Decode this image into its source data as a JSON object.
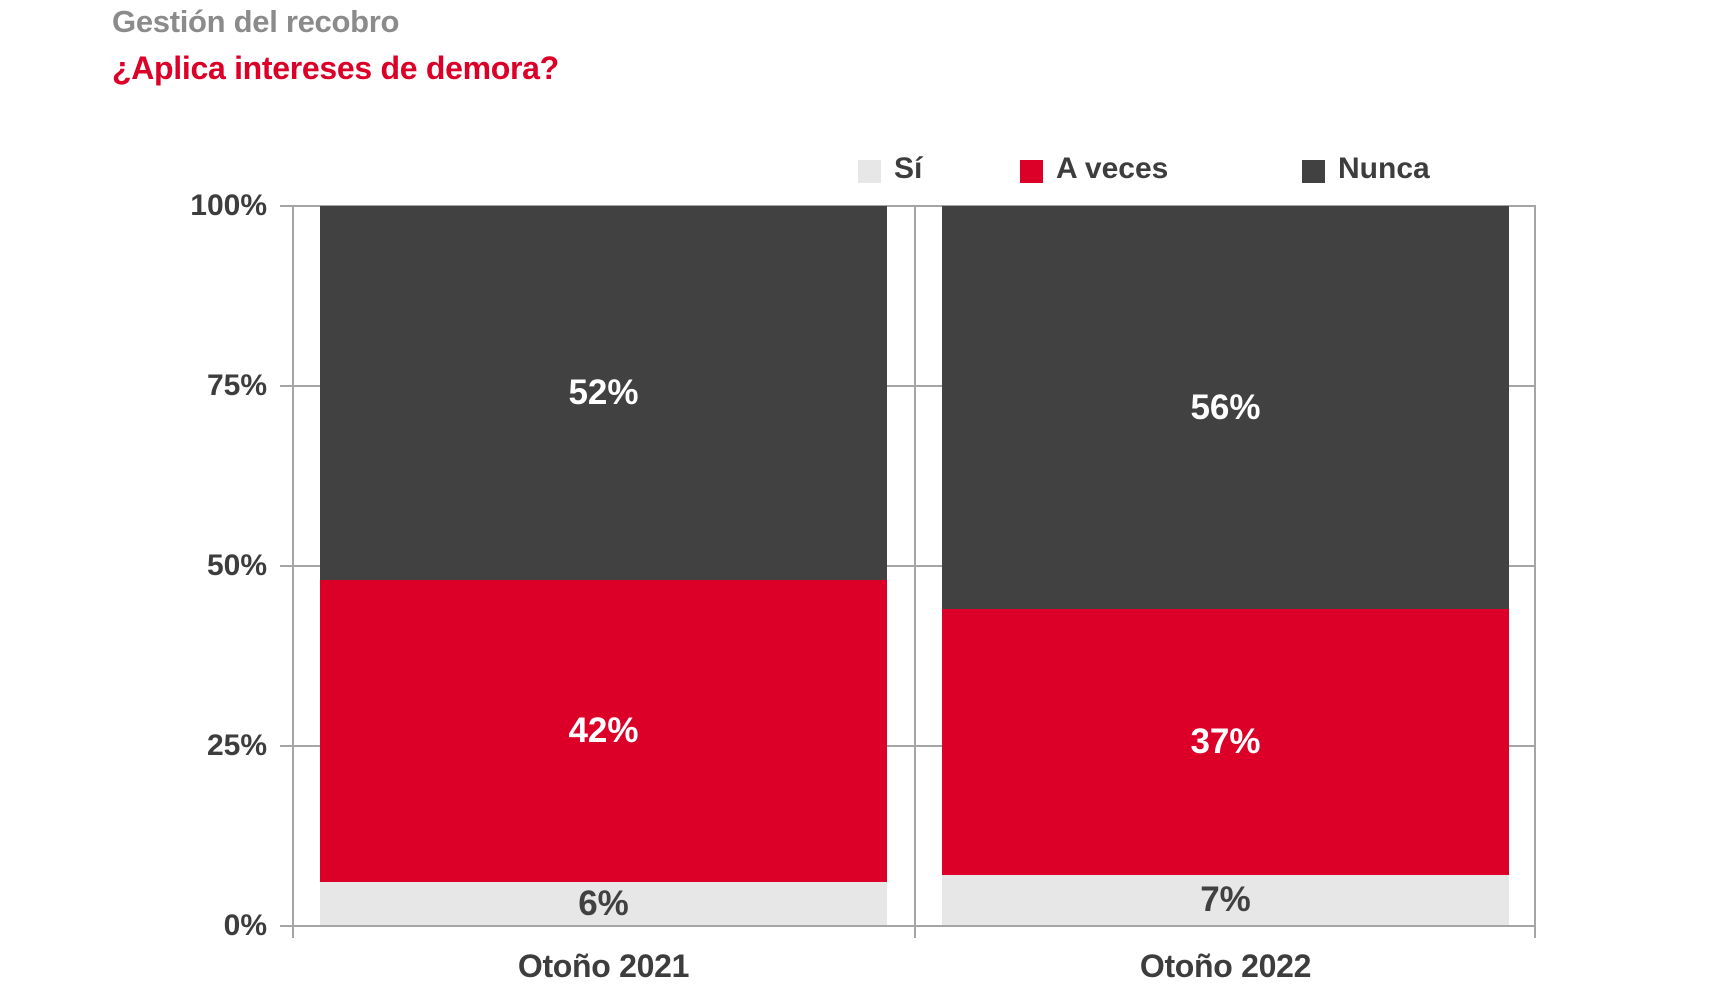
{
  "colors": {
    "title_gray": "#8b8b8b",
    "accent_red": "#dc0028",
    "dark": "#414141",
    "light_gray": "#e7e7e7",
    "grid": "#a5a5a5",
    "text": "#3d3d3d"
  },
  "chart_data": {
    "type": "bar",
    "stacked": true,
    "title": "Gestión del recobro",
    "subtitle": "¿Aplica intereses de demora?",
    "categories": [
      "Otoño 2021",
      "Otoño 2022"
    ],
    "series": [
      {
        "name": "Sí",
        "color": "#e7e7e7",
        "label_color": "#414141",
        "values": [
          6,
          7
        ]
      },
      {
        "name": "A veces",
        "color": "#dc0028",
        "label_color": "#ffffff",
        "values": [
          42,
          37
        ]
      },
      {
        "name": "Nunca",
        "color": "#414141",
        "label_color": "#ffffff",
        "values": [
          52,
          56
        ]
      }
    ],
    "value_suffix": "%",
    "ylim": [
      0,
      100
    ],
    "yticks": [
      "0%",
      "25%",
      "50%",
      "75%",
      "100%"
    ],
    "xlabel": "",
    "ylabel": "",
    "grid": true,
    "legend_position": "top"
  }
}
